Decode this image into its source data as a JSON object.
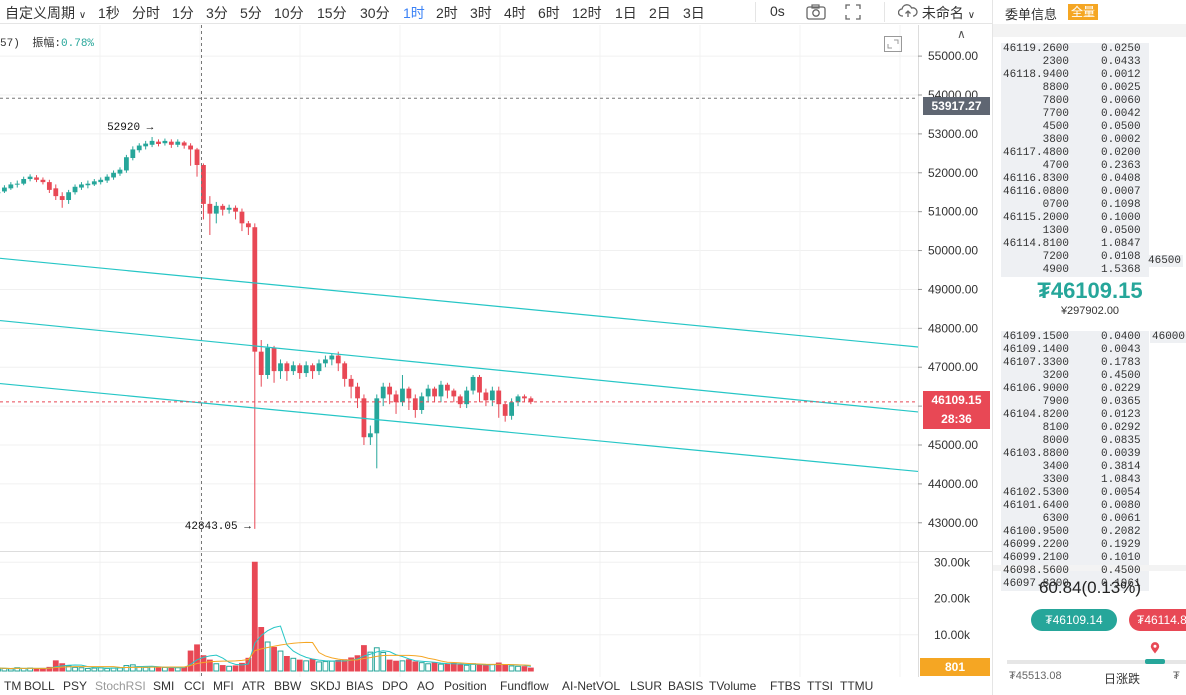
{
  "toolbar": {
    "custom_period": "自定义周期",
    "intervals": [
      "1秒",
      "分时",
      "1分",
      "3分",
      "5分",
      "10分",
      "15分",
      "30分",
      "1时",
      "2时",
      "3时",
      "4时",
      "6时",
      "12时",
      "1日",
      "2日",
      "3日"
    ],
    "active_interval": "1时",
    "countdown": "0s",
    "layout_name": "未命名"
  },
  "chart": {
    "info_prefix": "57)",
    "amplitude_label": "振幅:",
    "amplitude_value": "0.78%",
    "price_ticks": [
      "55000.00",
      "54000.00",
      "53000.00",
      "52000.00",
      "51000.00",
      "50000.00",
      "49000.00",
      "48000.00",
      "47000.00",
      "46000.00",
      "45000.00",
      "44000.00",
      "43000.00"
    ],
    "volume_ticks": [
      "30.00k",
      "20.00k",
      "10.00k"
    ],
    "high_annotation": "52920",
    "low_annotation": "42843.05",
    "marker_price": "53917.27",
    "last_price": "46109.15",
    "countdown": "28:36",
    "last_volume": "801",
    "colors": {
      "up": "#26a69a",
      "down": "#e84855",
      "channel": "#26c6c6"
    }
  },
  "chart_data": {
    "type": "candlestick",
    "ylim": [
      42300,
      55800
    ],
    "candles": [
      [
        51480,
        51500,
        51420,
        51600
      ],
      [
        51520,
        51620,
        51480,
        51680
      ],
      [
        51600,
        51700,
        51560,
        51760
      ],
      [
        51700,
        51720,
        51620,
        51800
      ],
      [
        51720,
        51840,
        51680,
        51900
      ],
      [
        51840,
        51900,
        51780,
        51960
      ],
      [
        51880,
        51820,
        51760,
        51940
      ],
      [
        51820,
        51760,
        51700,
        51880
      ],
      [
        51760,
        51560,
        51480,
        51820
      ],
      [
        51600,
        51400,
        51300,
        51700
      ],
      [
        51400,
        51300,
        51100,
        51500
      ],
      [
        51300,
        51500,
        51200,
        51560
      ],
      [
        51500,
        51640,
        51440,
        51700
      ],
      [
        51620,
        51700,
        51560,
        51760
      ],
      [
        51680,
        51720,
        51600,
        51800
      ],
      [
        51700,
        51780,
        51660,
        51840
      ],
      [
        51760,
        51820,
        51700,
        51880
      ],
      [
        51800,
        51900,
        51740,
        51960
      ],
      [
        51880,
        52000,
        51820,
        52060
      ],
      [
        51980,
        52080,
        51920,
        52140
      ],
      [
        52060,
        52400,
        52000,
        52460
      ],
      [
        52380,
        52600,
        52320,
        52680
      ],
      [
        52580,
        52700,
        52520,
        52760
      ],
      [
        52680,
        52750,
        52600,
        52820
      ],
      [
        52720,
        52820,
        52660,
        52920
      ],
      [
        52800,
        52740,
        52680,
        52860
      ],
      [
        52760,
        52820,
        52700,
        52880
      ],
      [
        52800,
        52720,
        52640,
        52860
      ],
      [
        52720,
        52800,
        52660,
        52860
      ],
      [
        52780,
        52700,
        52620,
        52820
      ],
      [
        52700,
        52600,
        52180,
        52760
      ],
      [
        52600,
        52200,
        51900,
        52640
      ],
      [
        52200,
        51200,
        50800,
        52240
      ],
      [
        51200,
        50950,
        50400,
        51400
      ],
      [
        50950,
        51150,
        50700,
        51250
      ],
      [
        51150,
        51050,
        50900,
        51200
      ],
      [
        51050,
        51100,
        50950,
        51180
      ],
      [
        51100,
        51000,
        50800,
        51160
      ],
      [
        51000,
        50700,
        50500,
        51080
      ],
      [
        50700,
        50600,
        50400,
        50760
      ],
      [
        50600,
        47400,
        42843.05,
        50700
      ],
      [
        47400,
        46800,
        46500,
        47700
      ],
      [
        46800,
        47500,
        46700,
        47600
      ],
      [
        47500,
        46900,
        46600,
        47550
      ],
      [
        46900,
        47100,
        46700,
        47200
      ],
      [
        47100,
        46900,
        46650,
        47150
      ],
      [
        46900,
        47050,
        46800,
        47150
      ],
      [
        47050,
        46850,
        46700,
        47100
      ],
      [
        46850,
        47050,
        46750,
        47150
      ],
      [
        47050,
        46900,
        46700,
        47100
      ],
      [
        46900,
        47100,
        46800,
        47200
      ],
      [
        47100,
        47200,
        47000,
        47300
      ],
      [
        47200,
        47300,
        47050,
        47350
      ],
      [
        47300,
        47100,
        46900,
        47400
      ],
      [
        47100,
        46700,
        46500,
        47150
      ],
      [
        46700,
        46500,
        46200,
        46800
      ],
      [
        46500,
        46200,
        45950,
        46600
      ],
      [
        46200,
        45200,
        45000,
        46300
      ],
      [
        45200,
        45300,
        45000,
        45500
      ],
      [
        45300,
        46200,
        44400,
        46300
      ],
      [
        46200,
        46500,
        46000,
        46600
      ],
      [
        46500,
        46300,
        46050,
        46600
      ],
      [
        46300,
        46100,
        45800,
        46400
      ],
      [
        46100,
        46450,
        46000,
        46800
      ],
      [
        46450,
        46200,
        45900,
        46500
      ],
      [
        46200,
        45900,
        45700,
        46300
      ],
      [
        45900,
        46250,
        45800,
        46350
      ],
      [
        46250,
        46450,
        46100,
        46550
      ],
      [
        46450,
        46250,
        46100,
        46500
      ],
      [
        46250,
        46550,
        46100,
        46650
      ],
      [
        46550,
        46400,
        46200,
        46600
      ],
      [
        46400,
        46250,
        46100,
        46450
      ],
      [
        46250,
        46050,
        45950,
        46300
      ],
      [
        46050,
        46400,
        45950,
        46500
      ],
      [
        46400,
        46750,
        46300,
        46800
      ],
      [
        46750,
        46350,
        46100,
        46800
      ],
      [
        46350,
        46150,
        46000,
        46450
      ],
      [
        46150,
        46400,
        46000,
        46500
      ],
      [
        46400,
        46050,
        45700,
        46500
      ],
      [
        46050,
        45750,
        45600,
        46100
      ],
      [
        45750,
        46100,
        45650,
        46200
      ],
      [
        46100,
        46250,
        46000,
        46300
      ],
      [
        46250,
        46200,
        46100,
        46300
      ],
      [
        46200,
        46109.15,
        46050,
        46250
      ]
    ],
    "volumes": [
      800,
      700,
      600,
      900,
      700,
      800,
      600,
      700,
      1000,
      2800,
      2000,
      1400,
      1000,
      900,
      700,
      800,
      900,
      700,
      800,
      900,
      1500,
      1700,
      1200,
      1000,
      1100,
      900,
      1000,
      800,
      900,
      1000,
      5500,
      7200,
      4200,
      3000,
      2000,
      1500,
      1300,
      1400,
      2100,
      3500,
      30000,
      12000,
      8000,
      6500,
      5500,
      4000,
      3500,
      3000,
      2800,
      3200,
      2500,
      2600,
      2700,
      2900,
      3100,
      3600,
      4200,
      7000,
      5200,
      6400,
      5100,
      3000,
      2700,
      2800,
      3100,
      2500,
      2300,
      2000,
      2200,
      1900,
      1800,
      2100,
      1700,
      1600,
      2000,
      1700,
      1500,
      1800,
      2200,
      1700,
      1400,
      1300,
      1200,
      801
    ],
    "channel_lines": [
      {
        "from": [
          0,
          49800
        ],
        "to": [
          918,
          47520
        ]
      },
      {
        "from": [
          0,
          48200
        ],
        "to": [
          918,
          45850
        ]
      },
      {
        "from": [
          0,
          46580
        ],
        "to": [
          918,
          44320
        ]
      }
    ]
  },
  "indicators": [
    "TM",
    "BOLL",
    "PSY",
    "StochRSI",
    "SMI",
    "CCI",
    "MFI",
    "ATR",
    "BBW",
    "SKDJ",
    "BIAS",
    "DPO",
    "AO",
    "Position",
    "Fundflow",
    "AI-NetVOL",
    "LSUR",
    "BASIS",
    "TVolume",
    "FTBS",
    "TTSI",
    "TTMU"
  ],
  "indicator_dim": "StochRSI",
  "panel": {
    "title": "委单信息",
    "badge": "全量",
    "asks": [
      {
        "p": "46119.2600",
        "q": "0.0250"
      },
      {
        "p": "2300",
        "q": "0.0433"
      },
      {
        "p": "46118.9400",
        "q": "0.0012"
      },
      {
        "p": "8800",
        "q": "0.0025"
      },
      {
        "p": "7800",
        "q": "0.0060"
      },
      {
        "p": "7700",
        "q": "0.0042"
      },
      {
        "p": "4500",
        "q": "0.0500"
      },
      {
        "p": "3800",
        "q": "0.0002"
      },
      {
        "p": "46117.4800",
        "q": "0.0200"
      },
      {
        "p": "4700",
        "q": "0.2363"
      },
      {
        "p": "46116.8300",
        "q": "0.0408"
      },
      {
        "p": "46116.0800",
        "q": "0.0007"
      },
      {
        "p": "0700",
        "q": "0.1098"
      },
      {
        "p": "46115.2000",
        "q": "0.1000"
      },
      {
        "p": "1300",
        "q": "0.0500"
      },
      {
        "p": "46114.8100",
        "q": "1.0847"
      },
      {
        "p": "7200",
        "q": "0.0108"
      },
      {
        "p": "4900",
        "q": "1.5368"
      }
    ],
    "ask_side_total": "46500",
    "last_price": "₮46109.15",
    "cny_price": "¥297902.00",
    "bid_side_total": "46000",
    "bids": [
      {
        "p": "46109.1500",
        "q": "0.0400"
      },
      {
        "p": "46109.1400",
        "q": "0.0043"
      },
      {
        "p": "46107.3300",
        "q": "0.1783"
      },
      {
        "p": "3200",
        "q": "0.4500"
      },
      {
        "p": "46106.9000",
        "q": "0.0229"
      },
      {
        "p": "7900",
        "q": "0.0365"
      },
      {
        "p": "46104.8200",
        "q": "0.0123"
      },
      {
        "p": "8100",
        "q": "0.0292"
      },
      {
        "p": "8000",
        "q": "0.0835"
      },
      {
        "p": "46103.8800",
        "q": "0.0039"
      },
      {
        "p": "3400",
        "q": "0.3814"
      },
      {
        "p": "3300",
        "q": "1.0843"
      },
      {
        "p": "46102.5300",
        "q": "0.0054"
      },
      {
        "p": "46101.6400",
        "q": "0.0080"
      },
      {
        "p": "6300",
        "q": "0.0061"
      },
      {
        "p": "46100.9500",
        "q": "0.2082"
      },
      {
        "p": "46099.2200",
        "q": "0.1929"
      },
      {
        "p": "46099.2100",
        "q": "0.1010"
      },
      {
        "p": "46098.5600",
        "q": "0.4500"
      },
      {
        "p": "46097.8300",
        "q": "0.1961"
      }
    ],
    "change": "60.84(0.13%)",
    "bid_button": "₮46109.14",
    "ask_button": "₮46114.8",
    "range_low": "₮45513.08",
    "range_label": "日涨跌",
    "range_high": "₮"
  }
}
